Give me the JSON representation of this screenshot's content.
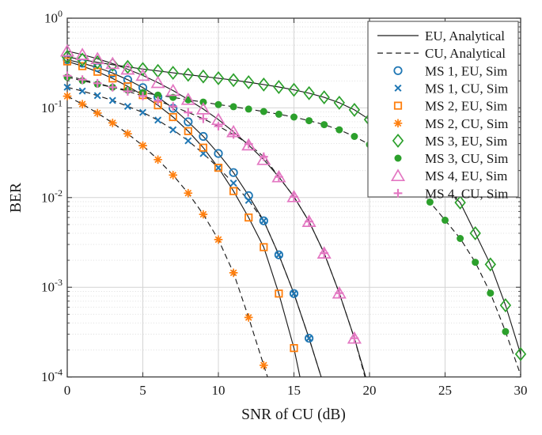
{
  "figure": {
    "background": "#ffffff",
    "axis_color": "#3c3c3c",
    "curve_color": "#1c1c1c",
    "grid_major_color": "#d4d4d4",
    "grid_minor_color": "#dadada",
    "text_color": "#1a1a1a",
    "legend_border_color": "#5f5f5f"
  },
  "chart_data": {
    "type": "line",
    "title": "",
    "xlabel": "SNR of CU (dB)",
    "ylabel": "BER",
    "xlim": [
      0,
      30
    ],
    "yscale": "log",
    "ylim": [
      0.0001,
      1
    ],
    "xticks": [
      0,
      5,
      10,
      15,
      20,
      25,
      30
    ],
    "yticks": [
      {
        "base": "10",
        "exp": "0",
        "value": 1
      },
      {
        "base": "10",
        "exp": "-1",
        "value": 0.1
      },
      {
        "base": "10",
        "exp": "-2",
        "value": 0.01
      },
      {
        "base": "10",
        "exp": "-3",
        "value": 0.001
      },
      {
        "base": "10",
        "exp": "-4",
        "value": 0.0001
      }
    ],
    "grid": {
      "major": true,
      "minor_y_dotted": true
    },
    "legend": {
      "position": "top-right",
      "entries": [
        {
          "label": "EU, Analytical",
          "sample": "line",
          "line": "solid",
          "color": "#1c1c1c"
        },
        {
          "label": "CU, Analytical",
          "sample": "line",
          "line": "dashed",
          "color": "#1c1c1c"
        },
        {
          "label": "MS 1, EU, Sim",
          "sample": "marker",
          "marker": "circle",
          "color": "#1f77b4"
        },
        {
          "label": "MS 1, CU, Sim",
          "sample": "marker",
          "marker": "x",
          "color": "#1f77b4"
        },
        {
          "label": "MS 2, EU, Sim",
          "sample": "marker",
          "marker": "square",
          "color": "#ff7f0e"
        },
        {
          "label": "MS 2, CU, Sim",
          "sample": "marker",
          "marker": "asterisk",
          "color": "#ff7f0e"
        },
        {
          "label": "MS 3, EU, Sim",
          "sample": "marker",
          "marker": "diamond",
          "color": "#2ca02c"
        },
        {
          "label": "MS 3, CU, Sim",
          "sample": "marker",
          "marker": "circle_filled",
          "color": "#2ca02c"
        },
        {
          "label": "MS 4, EU, Sim",
          "sample": "marker",
          "marker": "triangle",
          "color": "#e377c2"
        },
        {
          "label": "MS 4, CU, Sim",
          "sample": "marker",
          "marker": "plus",
          "color": "#e377c2"
        }
      ]
    },
    "series": [
      {
        "name": "MS 1, EU, Sim",
        "id": "ms1-eu",
        "color": "#1f77b4",
        "line": "solid",
        "marker": "circle",
        "points": [
          [
            0,
            0.345
          ],
          [
            1,
            0.315
          ],
          [
            2,
            0.282
          ],
          [
            3,
            0.245
          ],
          [
            4,
            0.206
          ],
          [
            5,
            0.168
          ],
          [
            6,
            0.132
          ],
          [
            7,
            0.099
          ],
          [
            8,
            0.07
          ],
          [
            9,
            0.048
          ],
          [
            10,
            0.031
          ],
          [
            11,
            0.019
          ],
          [
            12,
            0.0105
          ],
          [
            13,
            0.0055
          ],
          [
            14,
            0.0023
          ],
          [
            15,
            0.00085
          ],
          [
            16,
            0.00027
          ]
        ],
        "line_end": [
          16.8,
          0.0001
        ]
      },
      {
        "name": "MS 1, CU, Sim",
        "id": "ms1-cu",
        "color": "#1f77b4",
        "line": "dashed",
        "marker": "x",
        "points": [
          [
            0,
            0.17
          ],
          [
            1,
            0.154
          ],
          [
            2,
            0.137
          ],
          [
            3,
            0.121
          ],
          [
            4,
            0.104
          ],
          [
            5,
            0.089
          ],
          [
            6,
            0.073
          ],
          [
            7,
            0.057
          ],
          [
            8,
            0.043
          ],
          [
            9,
            0.031
          ],
          [
            10,
            0.0215
          ],
          [
            11,
            0.0145
          ],
          [
            12,
            0.0093
          ],
          [
            13,
            0.0055
          ],
          [
            14,
            0.0023
          ],
          [
            15,
            0.00085
          ],
          [
            16,
            0.00027
          ]
        ],
        "line_end": [
          16.8,
          0.0001
        ]
      },
      {
        "name": "MS 2, EU, Sim",
        "id": "ms2-eu",
        "color": "#ff7f0e",
        "line": "solid",
        "marker": "square",
        "points": [
          [
            0,
            0.33
          ],
          [
            1,
            0.292
          ],
          [
            2,
            0.253
          ],
          [
            3,
            0.213
          ],
          [
            4,
            0.174
          ],
          [
            5,
            0.139
          ],
          [
            6,
            0.107
          ],
          [
            7,
            0.079
          ],
          [
            8,
            0.055
          ],
          [
            9,
            0.036
          ],
          [
            10,
            0.0215
          ],
          [
            11,
            0.0118
          ],
          [
            12,
            0.006
          ],
          [
            13,
            0.0028
          ],
          [
            14,
            0.00085
          ],
          [
            15,
            0.00021
          ]
        ],
        "line_end": [
          15.4,
          0.0001
        ]
      },
      {
        "name": "MS 2, CU, Sim",
        "id": "ms2-cu",
        "color": "#ff7f0e",
        "line": "dashed",
        "marker": "asterisk",
        "points": [
          [
            0,
            0.135
          ],
          [
            1,
            0.11
          ],
          [
            2,
            0.0875
          ],
          [
            3,
            0.068
          ],
          [
            4,
            0.0515
          ],
          [
            5,
            0.038
          ],
          [
            6,
            0.0265
          ],
          [
            7,
            0.0178
          ],
          [
            8,
            0.0112
          ],
          [
            9,
            0.0065
          ],
          [
            10,
            0.0034
          ],
          [
            11,
            0.00145
          ],
          [
            12,
            0.00046
          ],
          [
            13,
            0.000135
          ]
        ],
        "line_end": [
          13.25,
          0.0001
        ]
      },
      {
        "name": "MS 3, EU, Sim",
        "id": "ms3-eu",
        "color": "#2ca02c",
        "line": "solid",
        "marker": "diamond",
        "points": [
          [
            0,
            0.37
          ],
          [
            1,
            0.345
          ],
          [
            2,
            0.322
          ],
          [
            3,
            0.303
          ],
          [
            4,
            0.286
          ],
          [
            5,
            0.271
          ],
          [
            6,
            0.258
          ],
          [
            7,
            0.246
          ],
          [
            8,
            0.234
          ],
          [
            9,
            0.224
          ],
          [
            10,
            0.214
          ],
          [
            11,
            0.204
          ],
          [
            12,
            0.193
          ],
          [
            13,
            0.182
          ],
          [
            14,
            0.171
          ],
          [
            15,
            0.159
          ],
          [
            16,
            0.146
          ],
          [
            17,
            0.131
          ],
          [
            18,
            0.114
          ],
          [
            19,
            0.095
          ],
          [
            20,
            0.074
          ],
          [
            21,
            0.057
          ],
          [
            22,
            0.041
          ],
          [
            23,
            0.028
          ],
          [
            24,
            0.018
          ],
          [
            25,
            0.0125
          ],
          [
            26,
            0.0088
          ],
          [
            27,
            0.004
          ],
          [
            28,
            0.0018
          ],
          [
            29,
            0.00063
          ],
          [
            30,
            0.00018
          ]
        ],
        "line_end": null
      },
      {
        "name": "MS 3, CU, Sim",
        "id": "ms3-cu",
        "color": "#2ca02c",
        "line": "dashed",
        "marker": "circle_filled",
        "points": [
          [
            0,
            0.22
          ],
          [
            1,
            0.201
          ],
          [
            2,
            0.184
          ],
          [
            3,
            0.17
          ],
          [
            4,
            0.158
          ],
          [
            5,
            0.148
          ],
          [
            6,
            0.139
          ],
          [
            7,
            0.131
          ],
          [
            8,
            0.123
          ],
          [
            9,
            0.116
          ],
          [
            10,
            0.109
          ],
          [
            11,
            0.103
          ],
          [
            12,
            0.097
          ],
          [
            13,
            0.091
          ],
          [
            14,
            0.085
          ],
          [
            15,
            0.079
          ],
          [
            16,
            0.072
          ],
          [
            17,
            0.065
          ],
          [
            18,
            0.057
          ],
          [
            19,
            0.048
          ],
          [
            20,
            0.039
          ],
          [
            21,
            0.03
          ],
          [
            22,
            0.0215
          ],
          [
            23,
            0.0143
          ],
          [
            24,
            0.0089
          ],
          [
            25,
            0.0056
          ],
          [
            26,
            0.0035
          ],
          [
            27,
            0.0019
          ],
          [
            28,
            0.00086
          ],
          [
            29,
            0.00032
          ]
        ],
        "line_end": [
          30,
          0.000105
        ]
      },
      {
        "name": "MS 4, EU, Sim",
        "id": "ms4-eu",
        "color": "#e377c2",
        "line": "solid",
        "marker": "triangle",
        "points": [
          [
            0,
            0.43
          ],
          [
            1,
            0.393
          ],
          [
            2,
            0.353
          ],
          [
            3,
            0.312
          ],
          [
            4,
            0.27
          ],
          [
            5,
            0.23
          ],
          [
            6,
            0.191
          ],
          [
            7,
            0.156
          ],
          [
            8,
            0.124
          ],
          [
            9,
            0.097
          ],
          [
            10,
            0.074
          ],
          [
            11,
            0.054
          ],
          [
            12,
            0.0385
          ],
          [
            13,
            0.0265
          ],
          [
            14,
            0.017
          ],
          [
            15,
            0.0102
          ],
          [
            16,
            0.0054
          ],
          [
            17,
            0.0024
          ],
          [
            18,
            0.00086
          ],
          [
            19,
            0.00027
          ]
        ],
        "line_end": [
          19.75,
          0.0001
        ]
      },
      {
        "name": "MS 4, CU, Sim",
        "id": "ms4-cu",
        "color": "#e377c2",
        "line": "dashed",
        "marker": "plus",
        "points": [
          [
            0,
            0.228
          ],
          [
            1,
            0.207
          ],
          [
            2,
            0.188
          ],
          [
            3,
            0.17
          ],
          [
            4,
            0.153
          ],
          [
            5,
            0.136
          ],
          [
            6,
            0.12
          ],
          [
            7,
            0.104
          ],
          [
            8,
            0.089
          ],
          [
            9,
            0.0755
          ],
          [
            10,
            0.0625
          ],
          [
            11,
            0.0505
          ],
          [
            12,
            0.0395
          ],
          [
            13,
            0.0285
          ],
          [
            14,
            0.017
          ],
          [
            15,
            0.0102
          ],
          [
            16,
            0.0054
          ],
          [
            17,
            0.0024
          ],
          [
            18,
            0.00086
          ],
          [
            19,
            0.00027
          ]
        ],
        "line_end": [
          19.7,
          0.0001
        ]
      }
    ]
  }
}
